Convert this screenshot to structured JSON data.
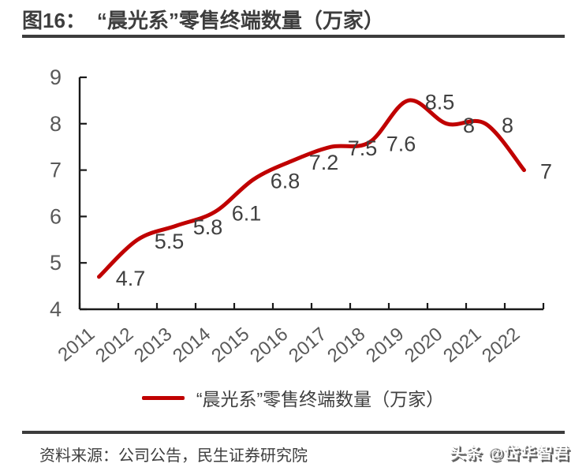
{
  "header": {
    "figure_label": "图16：",
    "title": "“晨光系”零售终端数量（万家）"
  },
  "chart_data": {
    "type": "line",
    "title": "“晨光系”零售终端数量（万家）",
    "categories": [
      "2011",
      "2012",
      "2013",
      "2014",
      "2015",
      "2016",
      "2017",
      "2018",
      "2019",
      "2020",
      "2021",
      "2022"
    ],
    "series": [
      {
        "name": "“晨光系”零售终端数量（万家）",
        "values": [
          4.7,
          5.5,
          5.8,
          6.1,
          6.8,
          7.2,
          7.5,
          7.6,
          8.5,
          8,
          8,
          7
        ],
        "value_labels": [
          "4.7",
          "5.5",
          "5.8",
          "6.1",
          "6.8",
          "7.2",
          "7.5",
          "7.6",
          "8.5",
          "8",
          "8",
          "7"
        ]
      }
    ],
    "xlabel": "",
    "ylabel": "",
    "ylim": [
      4,
      9
    ],
    "yticks": [
      4,
      5,
      6,
      7,
      8,
      9
    ],
    "grid": false,
    "legend_position": "bottom",
    "x_tick_rotation": -40,
    "colors": {
      "line": "#c00000",
      "axis": "#1a1a1a",
      "tick_labels": "#595959",
      "data_labels": "#404040"
    }
  },
  "legend": {
    "label": "“晨光系”零售终端数量（万家）"
  },
  "footer": {
    "source": "资料来源：公司公告，民生证券研究院",
    "watermark": "头条 @岱华智君"
  }
}
